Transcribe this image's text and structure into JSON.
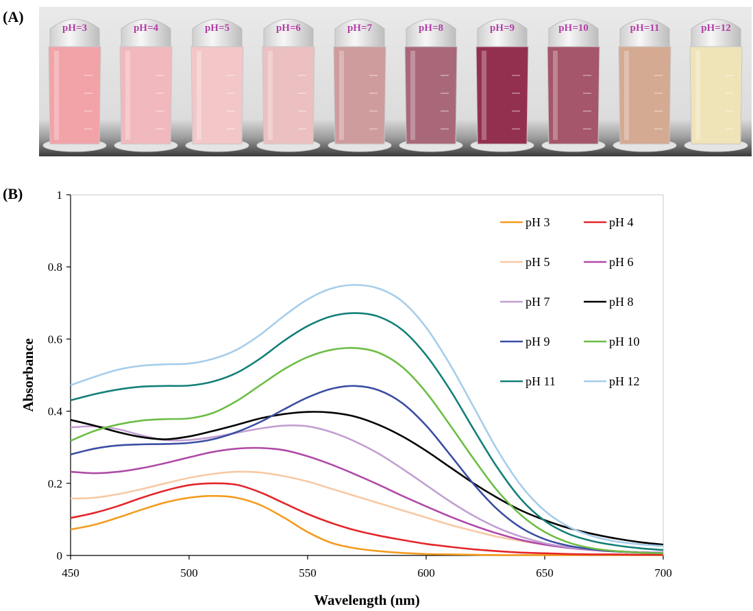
{
  "panel_a": {
    "label": "(A)",
    "vials": [
      {
        "label": "pH=3",
        "color": "#f2a3a8"
      },
      {
        "label": "pH=4",
        "color": "#f1b9bd"
      },
      {
        "label": "pH=5",
        "color": "#f3c6c8"
      },
      {
        "label": "pH=6",
        "color": "#ecc0c0"
      },
      {
        "label": "pH=7",
        "color": "#cf9c9e"
      },
      {
        "label": "pH=8",
        "color": "#a9687a"
      },
      {
        "label": "pH=9",
        "color": "#94304f"
      },
      {
        "label": "pH=10",
        "color": "#a5566a"
      },
      {
        "label": "pH=11",
        "color": "#d5aa92"
      },
      {
        "label": "pH=12",
        "color": "#efe3b8"
      }
    ]
  },
  "panel_b": {
    "label": "(B)"
  },
  "chart_data": {
    "type": "line",
    "title": "",
    "xlabel": "Wavelength (nm)",
    "ylabel": "Absorbance",
    "xlim": [
      450,
      700
    ],
    "ylim": [
      0,
      1
    ],
    "xticks": [
      450,
      500,
      550,
      600,
      650,
      700
    ],
    "yticks": [
      0,
      0.2,
      0.4,
      0.6,
      0.8,
      1
    ],
    "ytick_labels": [
      "0",
      "0.2",
      "0.4",
      "0.6",
      "0.8",
      "1"
    ],
    "grid": false,
    "legend_position": "top-right",
    "x": [
      450,
      460,
      470,
      480,
      490,
      500,
      510,
      520,
      530,
      540,
      550,
      560,
      570,
      580,
      590,
      600,
      610,
      620,
      630,
      640,
      650,
      660,
      670,
      680,
      690,
      700
    ],
    "series": [
      {
        "name": "pH 3",
        "color": "#f39c1f",
        "values": [
          0.072,
          0.085,
          0.105,
          0.127,
          0.147,
          0.16,
          0.165,
          0.16,
          0.14,
          0.105,
          0.065,
          0.035,
          0.02,
          0.012,
          0.007,
          0.004,
          0.003,
          0.002,
          0.001,
          0.001,
          0.001,
          0.001,
          0.001,
          0.001,
          0.001,
          0.001
        ]
      },
      {
        "name": "pH 4",
        "color": "#e3262a",
        "values": [
          0.104,
          0.118,
          0.137,
          0.16,
          0.18,
          0.195,
          0.2,
          0.196,
          0.175,
          0.145,
          0.115,
          0.09,
          0.07,
          0.055,
          0.043,
          0.032,
          0.024,
          0.017,
          0.012,
          0.008,
          0.006,
          0.004,
          0.003,
          0.003,
          0.002,
          0.002
        ]
      },
      {
        "name": "pH 5",
        "color": "#f7c9a4",
        "values": [
          0.158,
          0.16,
          0.17,
          0.184,
          0.2,
          0.215,
          0.226,
          0.232,
          0.23,
          0.22,
          0.205,
          0.185,
          0.165,
          0.145,
          0.125,
          0.105,
          0.085,
          0.068,
          0.052,
          0.04,
          0.03,
          0.022,
          0.016,
          0.012,
          0.009,
          0.007
        ]
      },
      {
        "name": "pH 6",
        "color": "#b04aa8",
        "values": [
          0.232,
          0.228,
          0.232,
          0.242,
          0.256,
          0.272,
          0.287,
          0.296,
          0.298,
          0.292,
          0.275,
          0.252,
          0.225,
          0.196,
          0.165,
          0.136,
          0.108,
          0.083,
          0.061,
          0.043,
          0.03,
          0.021,
          0.015,
          0.011,
          0.009,
          0.008
        ]
      },
      {
        "name": "pH 7",
        "color": "#c29fd2",
        "values": [
          0.355,
          0.358,
          0.35,
          0.333,
          0.32,
          0.32,
          0.328,
          0.34,
          0.352,
          0.36,
          0.358,
          0.342,
          0.316,
          0.282,
          0.24,
          0.195,
          0.15,
          0.11,
          0.077,
          0.052,
          0.034,
          0.023,
          0.016,
          0.012,
          0.009,
          0.007
        ]
      },
      {
        "name": "pH 8",
        "color": "#000000",
        "values": [
          0.376,
          0.36,
          0.342,
          0.328,
          0.322,
          0.33,
          0.345,
          0.362,
          0.38,
          0.392,
          0.398,
          0.396,
          0.385,
          0.362,
          0.33,
          0.29,
          0.245,
          0.2,
          0.16,
          0.125,
          0.098,
          0.076,
          0.06,
          0.047,
          0.037,
          0.03
        ]
      },
      {
        "name": "pH 9",
        "color": "#3a4ea2",
        "values": [
          0.28,
          0.296,
          0.305,
          0.308,
          0.309,
          0.312,
          0.322,
          0.342,
          0.37,
          0.405,
          0.438,
          0.462,
          0.47,
          0.458,
          0.422,
          0.36,
          0.28,
          0.198,
          0.128,
          0.077,
          0.045,
          0.027,
          0.017,
          0.011,
          0.008,
          0.006
        ]
      },
      {
        "name": "pH 10",
        "color": "#6cbd45",
        "values": [
          0.318,
          0.345,
          0.363,
          0.374,
          0.378,
          0.38,
          0.395,
          0.428,
          0.472,
          0.516,
          0.55,
          0.57,
          0.575,
          0.562,
          0.522,
          0.452,
          0.362,
          0.268,
          0.18,
          0.112,
          0.065,
          0.036,
          0.02,
          0.012,
          0.008,
          0.006
        ]
      },
      {
        "name": "pH 11",
        "color": "#138078",
        "values": [
          0.43,
          0.447,
          0.46,
          0.468,
          0.47,
          0.471,
          0.482,
          0.506,
          0.546,
          0.595,
          0.636,
          0.663,
          0.672,
          0.662,
          0.625,
          0.555,
          0.46,
          0.35,
          0.244,
          0.156,
          0.096,
          0.06,
          0.04,
          0.028,
          0.02,
          0.015
        ]
      },
      {
        "name": "pH 12",
        "color": "#a6cdea",
        "values": [
          0.472,
          0.495,
          0.515,
          0.526,
          0.53,
          0.532,
          0.545,
          0.57,
          0.612,
          0.664,
          0.71,
          0.74,
          0.75,
          0.74,
          0.704,
          0.632,
          0.53,
          0.412,
          0.293,
          0.194,
          0.124,
          0.08,
          0.054,
          0.039,
          0.031,
          0.026
        ]
      }
    ]
  }
}
